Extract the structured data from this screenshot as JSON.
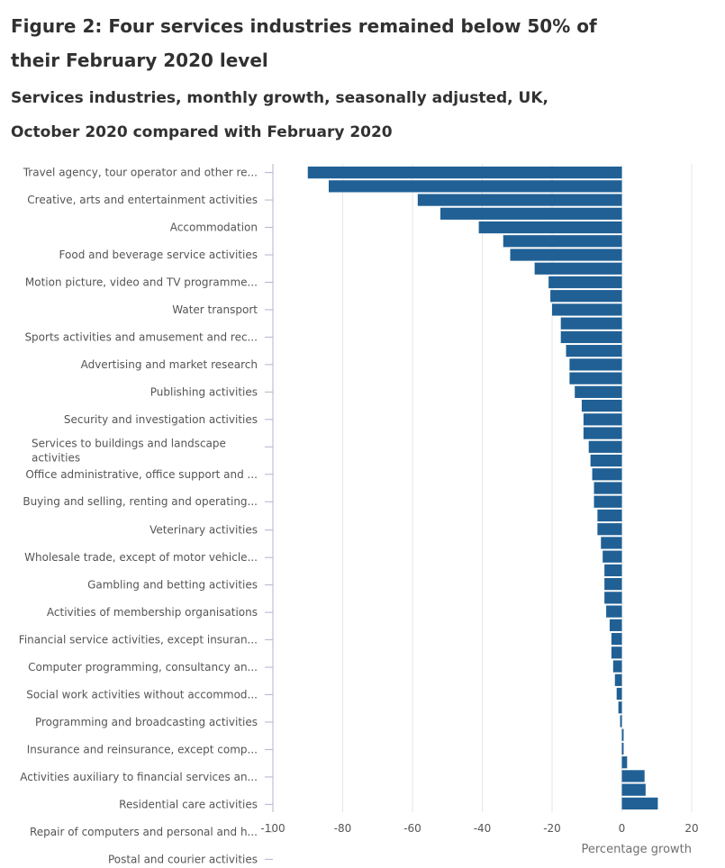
{
  "chart_data": {
    "type": "bar",
    "orientation": "horizontal",
    "title": "Figure 2: Four services industries remained below 50% of their February 2020 level",
    "subtitle": "Services industries, monthly growth, seasonally adjusted, UK, October 2020 compared with February 2020",
    "xlabel": "Percentage growth",
    "xlim": [
      -100,
      20
    ],
    "xticks": [
      -100,
      -80,
      -60,
      -40,
      -20,
      0,
      20
    ],
    "grid": true,
    "bar_color": "#206095",
    "visible_category_labels": [
      "Travel agency, tour operator and other re...",
      "Creative, arts and entertainment activities",
      "Accommodation",
      "Food and beverage service activities",
      "Motion picture, video and TV programme...",
      "Water transport",
      "Sports activities and amusement and rec...",
      "Advertising and market research",
      "Publishing activities",
      "Security and investigation activities",
      "Services to buildings and landscape activities",
      "Office administrative, office support and ...",
      "Buying and selling, renting and operating...",
      "Veterinary activities",
      "Wholesale trade, except of motor vehicle...",
      "Gambling and betting activities",
      "Activities of membership organisations",
      "Financial service activities, except insuran...",
      "Computer programming, consultancy an...",
      "Social work activities without accommod...",
      "Programming and broadcasting activities",
      "Insurance and reinsurance, except comp...",
      "Activities auxiliary to financial services an...",
      "Residential care activities",
      "Repair of computers and personal and h...",
      "Postal and courier activities"
    ],
    "values": [
      -90,
      -84,
      -58.5,
      -52,
      -41,
      -34,
      -32,
      -25,
      -21,
      -20.5,
      -20,
      -17.5,
      -17.5,
      -16,
      -15,
      -15,
      -13.5,
      -11.5,
      -11,
      -11,
      -9.5,
      -9,
      -8.5,
      -8,
      -8,
      -7,
      -7,
      -6,
      -5.5,
      -5,
      -5,
      -5,
      -4.5,
      -3.5,
      -3,
      -3,
      -2.5,
      -2,
      -1.5,
      -1,
      -0.5,
      0.5,
      0.5,
      1.5,
      6.5,
      6.8,
      10.3
    ]
  }
}
